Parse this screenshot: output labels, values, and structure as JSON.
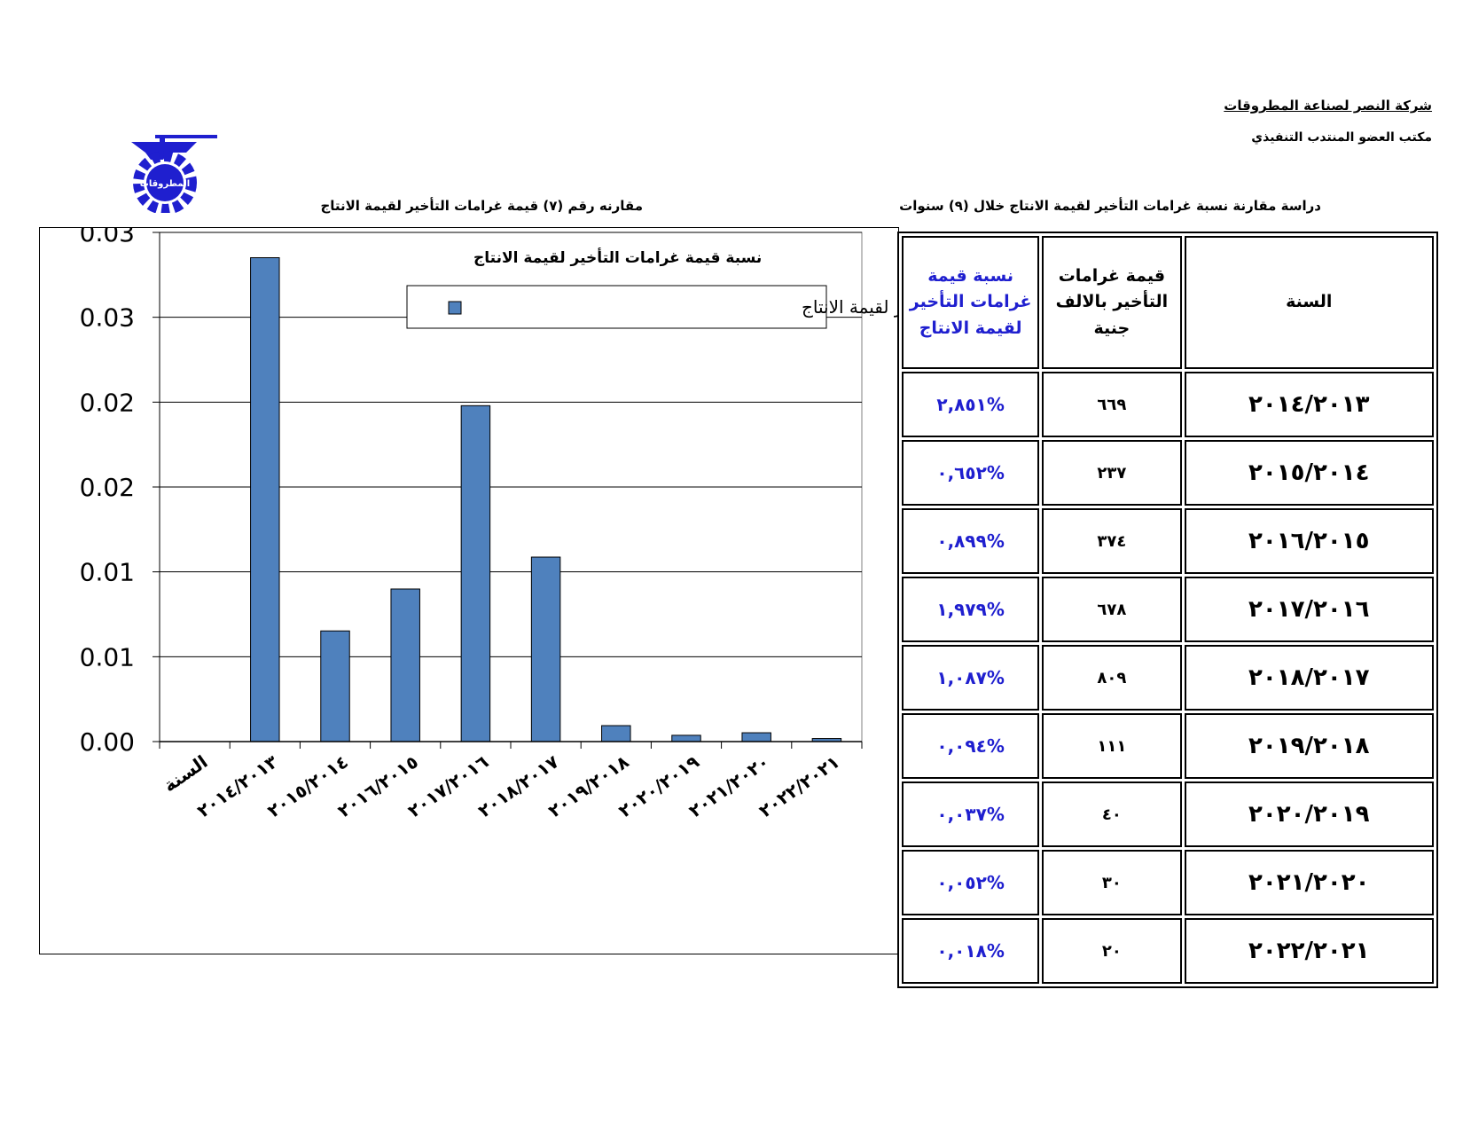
{
  "header": {
    "company": "شركة النصر لصناعة المطروقات",
    "office": "مكتب العضو المنتدب التنفيذي",
    "study_title": "دراسة مقارنة نسبة غرامات التأخير  لقيمة الانتاج خلال (٩)  سنوات",
    "chart_caption": "مقارنه  رقم (٧) قيمة غرامات التأخير لقيمة الانتاج",
    "logo_text": "المطروقات"
  },
  "table": {
    "headers": {
      "year": "السنة",
      "value": "قيمة غرامات التأخير بالالف جنية",
      "ratio": "نسبة قيمة غرامات التأخير لقيمة الانتاج"
    },
    "rows": [
      {
        "year": "٢٠١٤/٢٠١٣",
        "value": "٦٦٩",
        "ratio": "%٢,٨٥١"
      },
      {
        "year": "٢٠١٥/٢٠١٤",
        "value": "٢٣٧",
        "ratio": "%٠,٦٥٢"
      },
      {
        "year": "٢٠١٦/٢٠١٥",
        "value": "٣٧٤",
        "ratio": "%٠,٨٩٩"
      },
      {
        "year": "٢٠١٧/٢٠١٦",
        "value": "٦٧٨",
        "ratio": "%١,٩٧٩"
      },
      {
        "year": "٢٠١٨/٢٠١٧",
        "value": "٨٠٩",
        "ratio": "%١,٠٨٧"
      },
      {
        "year": "٢٠١٩/٢٠١٨",
        "value": "١١١",
        "ratio": "%٠,٠٩٤"
      },
      {
        "year": "٢٠٢٠/٢٠١٩",
        "value": "٤٠",
        "ratio": "%٠,٠٣٧"
      },
      {
        "year": "٢٠٢١/٢٠٢٠",
        "value": "٣٠",
        "ratio": "%٠,٠٥٢"
      },
      {
        "year": "٢٠٢٢/٢٠٢١",
        "value": "٢٠",
        "ratio": "%٠,٠١٨"
      }
    ]
  },
  "chart_data": {
    "type": "bar",
    "title": "نسبة قيمة غرامات التأخير لقيمة الانتاج",
    "categories": [
      "السنة",
      "٢٠١٤/٢٠١٣",
      "٢٠١٥/٢٠١٤",
      "٢٠١٦/٢٠١٥",
      "٢٠١٧/٢٠١٦",
      "٢٠١٨/٢٠١٧",
      "٢٠١٩/٢٠١٨",
      "٢٠٢٠/٢٠١٩",
      "٢٠٢١/٢٠٢٠",
      "٢٠٢٢/٢٠٢١"
    ],
    "series": [
      {
        "name": "نسبة قيمة غرامات التأخير لقيمة الانتاج",
        "values": [
          0,
          0.02851,
          0.00652,
          0.00899,
          0.01979,
          0.01087,
          0.00094,
          0.00037,
          0.00052,
          0.00018
        ]
      }
    ],
    "ylim": [
      0,
      0.03
    ],
    "ytick_values": [
      0,
      0.005,
      0.01,
      0.015,
      0.02,
      0.025,
      0.03
    ],
    "ytick_labels": [
      "0.00",
      "0.01",
      "0.01",
      "0.02",
      "0.02",
      "0.03",
      "0.03"
    ],
    "legend": "top-right",
    "grid": true,
    "bar_color": "#4f81bd"
  }
}
